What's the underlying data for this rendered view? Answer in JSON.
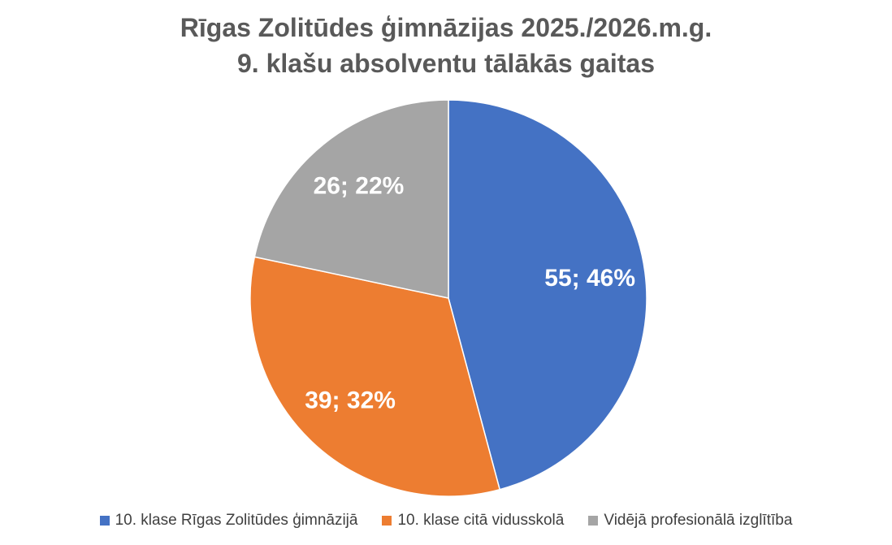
{
  "chart_data": {
    "type": "pie",
    "title": [
      "Rīgas Zolitūdes ģimnāzijas 2025./2026.m.g.",
      "9. klašu absolventu tālākās gaitas"
    ],
    "series": [
      {
        "name": "10. klase Rīgas Zolitūdes ģimnāzijā",
        "value": 55,
        "label": "55; 46%",
        "color": "#4472C4"
      },
      {
        "name": "10. klase citā vidusskolā",
        "value": 39,
        "label": "39; 32%",
        "color": "#ED7D31"
      },
      {
        "name": "Vidējā profesionālā izglītība",
        "value": 26,
        "label": "26; 22%",
        "color": "#A5A5A5"
      }
    ],
    "legend_position": "bottom"
  }
}
